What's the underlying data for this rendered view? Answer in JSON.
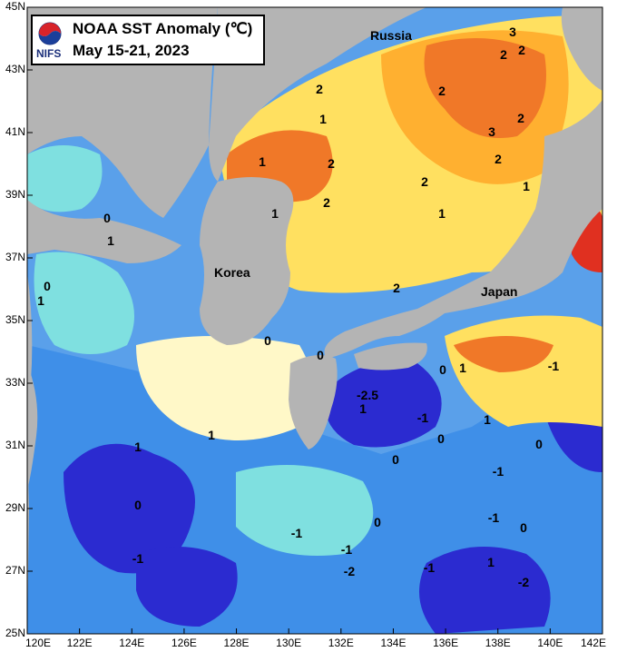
{
  "title": {
    "line1": "NOAA SST Anomaly (℃)",
    "line2": "May 15-21, 2023",
    "agency": "NIFS"
  },
  "places": {
    "russia": "Russia",
    "korea": "Korea",
    "japan": "Japan"
  },
  "lat_labels": [
    "45N",
    "43N",
    "41N",
    "39N",
    "37N",
    "35N",
    "33N",
    "31N",
    "29N",
    "27N",
    "25N"
  ],
  "lon_labels": [
    "120E",
    "122E",
    "124E",
    "126E",
    "128E",
    "130E",
    "132E",
    "134E",
    "136E",
    "138E",
    "140E",
    "142E"
  ],
  "contour_labels": [
    "3",
    "2",
    "2",
    "2",
    "2",
    "1",
    "2",
    "3",
    "2",
    "2",
    "1",
    "2",
    "1",
    "1",
    "2",
    "1",
    "2",
    "0",
    "1",
    "0",
    "1",
    "0",
    "0",
    "1",
    "0",
    "-1",
    "0",
    "-2.5",
    "1",
    "-1",
    "0",
    "1",
    "0",
    "1",
    "1",
    "-1",
    "0",
    "-1",
    "-1",
    "0",
    "1",
    "-1",
    "-2",
    "0",
    "-1",
    "-1",
    "-2"
  ],
  "colors": {
    "land": "#b4b4b4",
    "deep_negative": "#2b2bd0",
    "negative": "#3f8fe8",
    "slight_negative": "#7fe0e0",
    "near_zero": "#fff8c8",
    "slight_positive": "#ffe060",
    "positive": "#ffb030",
    "strong_positive": "#f07828",
    "very_strong_positive": "#e03020"
  }
}
